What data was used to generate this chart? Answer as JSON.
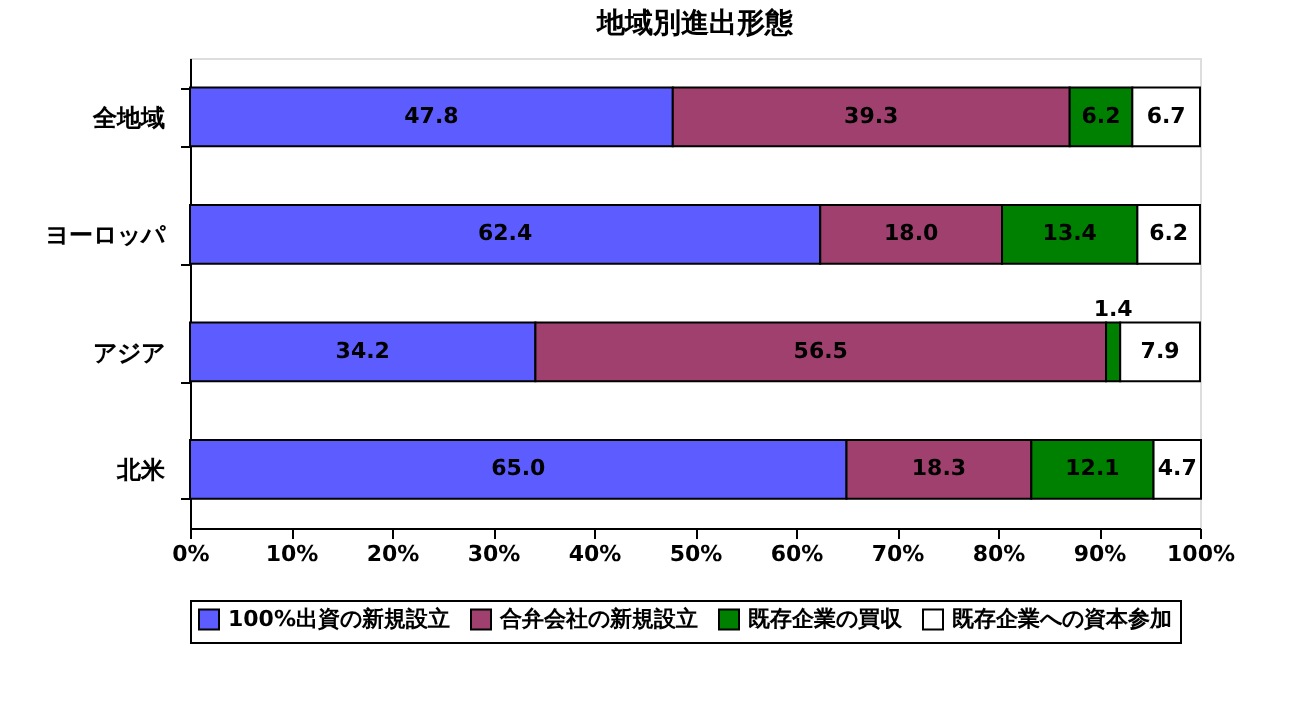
{
  "chart_data": {
    "type": "bar",
    "orientation": "horizontal",
    "stacked": true,
    "title": "地域別進出形態",
    "categories": [
      "全地域",
      "ヨーロッパ",
      "アジア",
      "北米"
    ],
    "series": [
      {
        "name": "100%出資の新規設立",
        "color": "#5c5cff",
        "values": [
          47.8,
          62.4,
          34.2,
          65.0
        ],
        "value_labels": [
          "47.8",
          "62.4",
          "34.2",
          "65.0"
        ]
      },
      {
        "name": "合弁会社の新規設立",
        "color": "#a0406e",
        "values": [
          39.3,
          18.0,
          56.5,
          18.3
        ],
        "value_labels": [
          "39.3",
          "18.0",
          "56.5",
          "18.3"
        ]
      },
      {
        "name": "既存企業の買収",
        "color": "#008000",
        "values": [
          6.2,
          13.4,
          1.4,
          12.1
        ],
        "value_labels": [
          "6.2",
          "13.4",
          "1.4",
          "12.1"
        ]
      },
      {
        "name": "既存企業への資本参加",
        "color": "#ffffff",
        "values": [
          6.7,
          6.2,
          7.9,
          4.7
        ],
        "value_labels": [
          "6.7",
          "6.2",
          "7.9",
          "4.7"
        ]
      }
    ],
    "xlim": [
      0,
      100
    ],
    "xticks": [
      {
        "value": 0,
        "label": "0%"
      },
      {
        "value": 10,
        "label": "10%"
      },
      {
        "value": 20,
        "label": "20%"
      },
      {
        "value": 30,
        "label": "30%"
      },
      {
        "value": 40,
        "label": "40%"
      },
      {
        "value": 50,
        "label": "50%"
      },
      {
        "value": 60,
        "label": "60%"
      },
      {
        "value": 70,
        "label": "70%"
      },
      {
        "value": 80,
        "label": "80%"
      },
      {
        "value": 90,
        "label": "90%"
      },
      {
        "value": 100,
        "label": "100%"
      }
    ],
    "grid": false,
    "legend": "bottom"
  }
}
